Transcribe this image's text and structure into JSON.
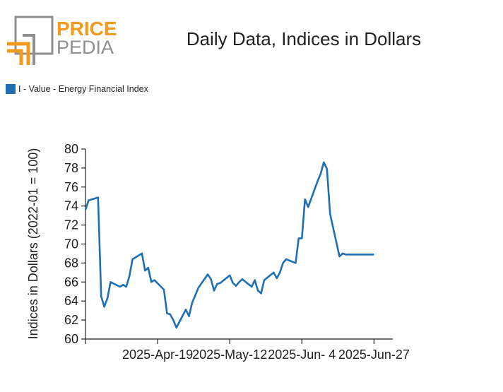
{
  "logo": {
    "line1": "PRICE",
    "line2": "PEDIA",
    "accent_color": "#f39a1c",
    "gray_color": "#8f8f8f"
  },
  "colors": {
    "series": "#1f6fb5",
    "axis": "#222222"
  },
  "chart_data": {
    "type": "line",
    "title": "Daily Data, Indices in Dollars",
    "ylabel": "Indices in Dollars (2022-01 = 100)",
    "xlabel": "",
    "ylim": [
      60,
      80
    ],
    "yticks": [
      60,
      62,
      64,
      66,
      68,
      70,
      72,
      74,
      76,
      78,
      80
    ],
    "xlim": [
      "2025-03-27",
      "2025-07-03"
    ],
    "xticks": [
      "2025-03-27",
      "2025-04-19",
      "2025-05-12",
      "2025-06-04",
      "2025-06-27"
    ],
    "xtick_labels": [
      "",
      "2025-Apr-19",
      "2025-May-12",
      "2025-Jun- 4",
      "2025-Jun-27"
    ],
    "legend_position": "top-left",
    "grid": false,
    "series": [
      {
        "name": "I - Value - Energy Financial Index",
        "x": [
          "2025-03-27",
          "2025-03-28",
          "2025-03-31",
          "2025-04-01",
          "2025-04-02",
          "2025-04-03",
          "2025-04-04",
          "2025-04-07",
          "2025-04-08",
          "2025-04-09",
          "2025-04-10",
          "2025-04-11",
          "2025-04-14",
          "2025-04-15",
          "2025-04-16",
          "2025-04-17",
          "2025-04-18",
          "2025-04-21",
          "2025-04-22",
          "2025-04-23",
          "2025-04-24",
          "2025-04-25",
          "2025-04-28",
          "2025-04-29",
          "2025-04-30",
          "2025-05-01",
          "2025-05-02",
          "2025-05-05",
          "2025-05-06",
          "2025-05-07",
          "2025-05-08",
          "2025-05-09",
          "2025-05-12",
          "2025-05-13",
          "2025-05-14",
          "2025-05-15",
          "2025-05-16",
          "2025-05-19",
          "2025-05-20",
          "2025-05-21",
          "2025-05-22",
          "2025-05-23",
          "2025-05-26",
          "2025-05-27",
          "2025-05-28",
          "2025-05-29",
          "2025-05-30",
          "2025-06-02",
          "2025-06-03",
          "2025-06-04",
          "2025-06-05",
          "2025-06-06",
          "2025-06-09",
          "2025-06-10",
          "2025-06-11",
          "2025-06-12",
          "2025-06-13",
          "2025-06-16",
          "2025-06-17",
          "2025-06-18",
          "2025-06-19",
          "2025-06-20",
          "2025-06-23",
          "2025-06-24",
          "2025-06-25",
          "2025-06-26",
          "2025-06-27"
        ],
        "values": [
          73.6,
          74.6,
          74.9,
          64.5,
          63.4,
          64.3,
          66.0,
          65.5,
          65.7,
          65.5,
          66.6,
          68.4,
          69.0,
          67.2,
          67.5,
          66.0,
          66.2,
          65.2,
          62.7,
          62.6,
          62.0,
          61.2,
          63.1,
          62.4,
          63.8,
          64.6,
          65.4,
          66.8,
          66.3,
          65.1,
          65.8,
          65.9,
          66.7,
          65.9,
          65.6,
          66.0,
          66.3,
          65.5,
          66.2,
          65.1,
          64.8,
          66.2,
          67.0,
          66.4,
          67.0,
          68.0,
          68.4,
          68.0,
          70.6,
          70.6,
          74.7,
          73.9,
          76.6,
          77.4,
          78.6,
          77.9,
          73.2,
          68.7,
          69.0,
          68.9,
          68.9,
          68.9,
          68.9,
          68.9,
          68.9,
          68.9,
          68.9
        ]
      }
    ]
  }
}
